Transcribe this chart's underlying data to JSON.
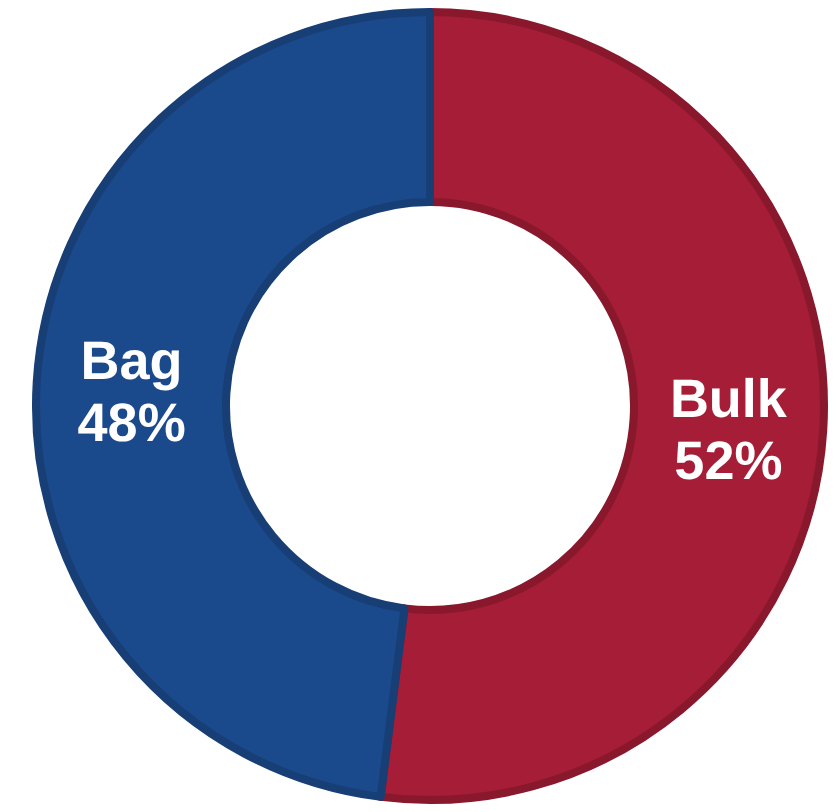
{
  "chart_data": {
    "type": "donut",
    "categories": [
      "Bulk",
      "Bag"
    ],
    "values": [
      52,
      48
    ],
    "colors": [
      "#a51d36",
      "#1b4a8c"
    ],
    "value_labels": [
      "52%",
      "48%"
    ],
    "legend": false
  }
}
